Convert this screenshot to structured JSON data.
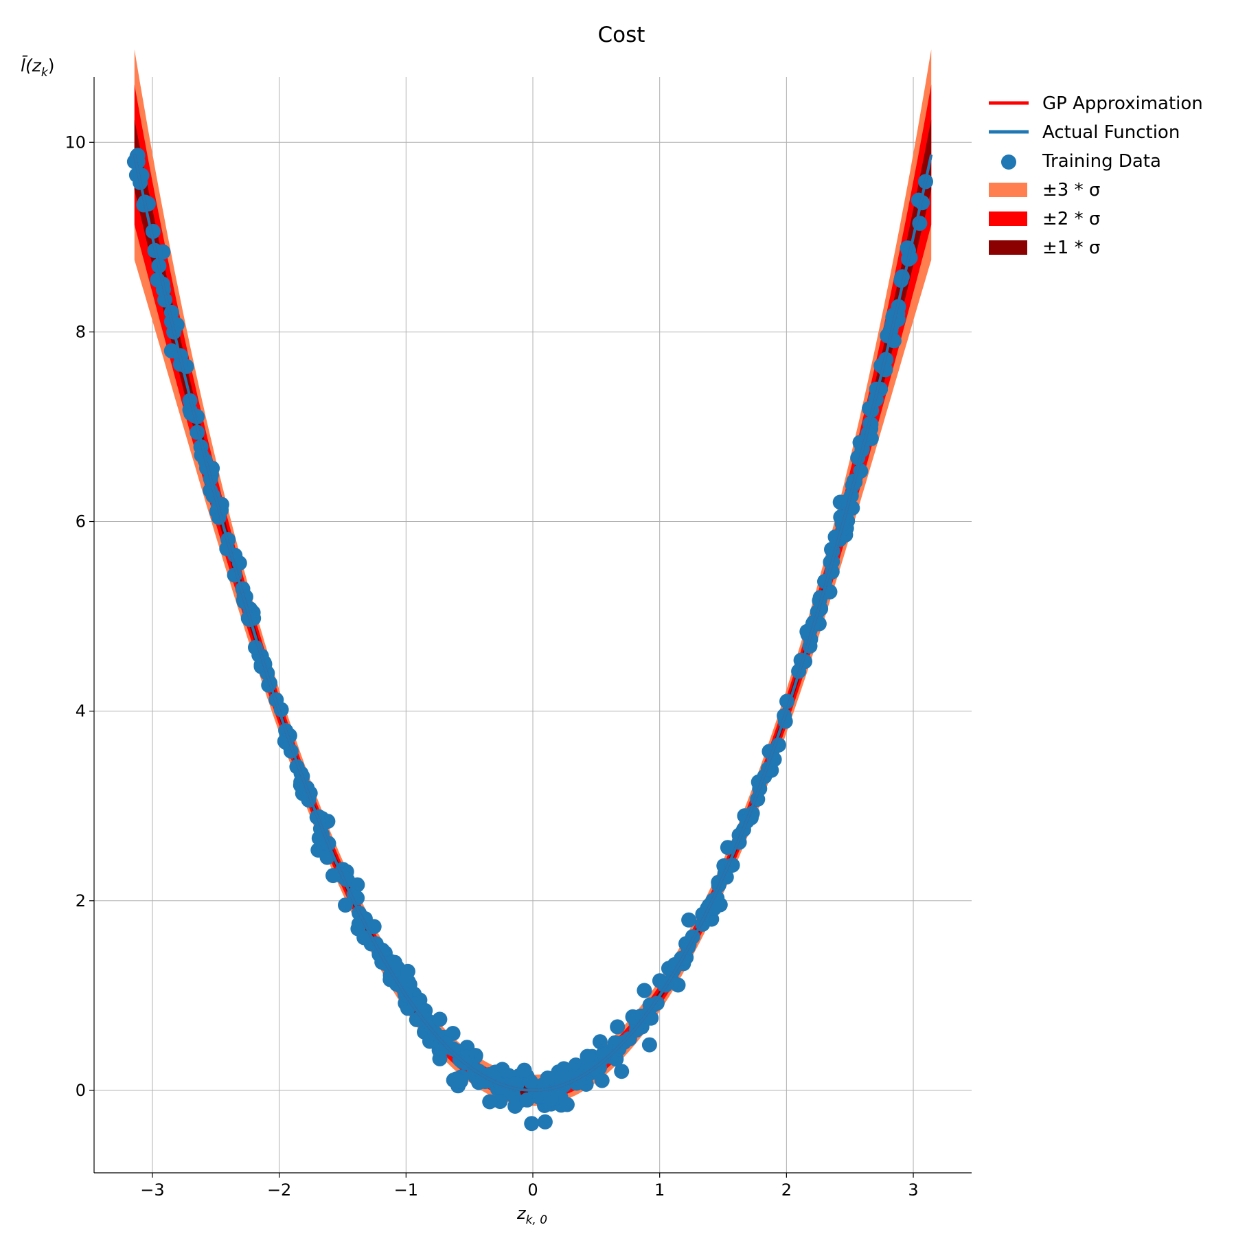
{
  "chart_data": {
    "type": "line",
    "title": "Cost",
    "xlabel": "z",
    "xlabel_sub": "k, 0",
    "ylabel": "l̄(z",
    "ylabel_sub": "k",
    "ylabel_close": ")",
    "xlim": [
      -3.46,
      3.46
    ],
    "ylim": [
      -0.87,
      10.69
    ],
    "xticks": [
      -3,
      -2,
      -1,
      0,
      1,
      2,
      3
    ],
    "xtick_labels": [
      "−3",
      "−2",
      "−1",
      "0",
      "1",
      "2",
      "3"
    ],
    "yticks": [
      0,
      2,
      4,
      6,
      8,
      10
    ],
    "ytick_labels": [
      "0",
      "2",
      "4",
      "6",
      "8",
      "10"
    ],
    "grid": true,
    "function": "y = x^2",
    "x_range": [
      -3.14159,
      3.14159
    ],
    "sigma_mid": 0.055,
    "sigma_edge": 0.16,
    "training_noise": 0.12,
    "training_count": 420,
    "outliers": [
      {
        "x": -0.01,
        "y": -0.35
      },
      {
        "x": 0.92,
        "y": 0.48
      },
      {
        "x": -0.34,
        "y": -0.12
      },
      {
        "x": 0.27,
        "y": -0.15
      }
    ],
    "legend": {
      "placement": "upper right, outside plot",
      "entries": [
        {
          "label": "GP Approximation",
          "kind": "line",
          "color": "#ff0000"
        },
        {
          "label": "Actual Function",
          "kind": "line",
          "color": "#1f77b4"
        },
        {
          "label": "Training Data",
          "kind": "marker",
          "color": "#1f77b4"
        },
        {
          "label": "±3 * σ",
          "kind": "patch",
          "color": "#ff7f50"
        },
        {
          "label": "±2 * σ",
          "kind": "patch",
          "color": "#ff0000"
        },
        {
          "label": "±1 * σ",
          "kind": "patch",
          "color": "#8b0000"
        }
      ]
    },
    "colors": {
      "gp": "#ff0000",
      "actual": "#1f77b4",
      "training": "#1f77b4",
      "band3": "#ff7f50",
      "band2": "#ff0000",
      "band1": "#8b0000",
      "grid": "#b0b0b0"
    }
  }
}
